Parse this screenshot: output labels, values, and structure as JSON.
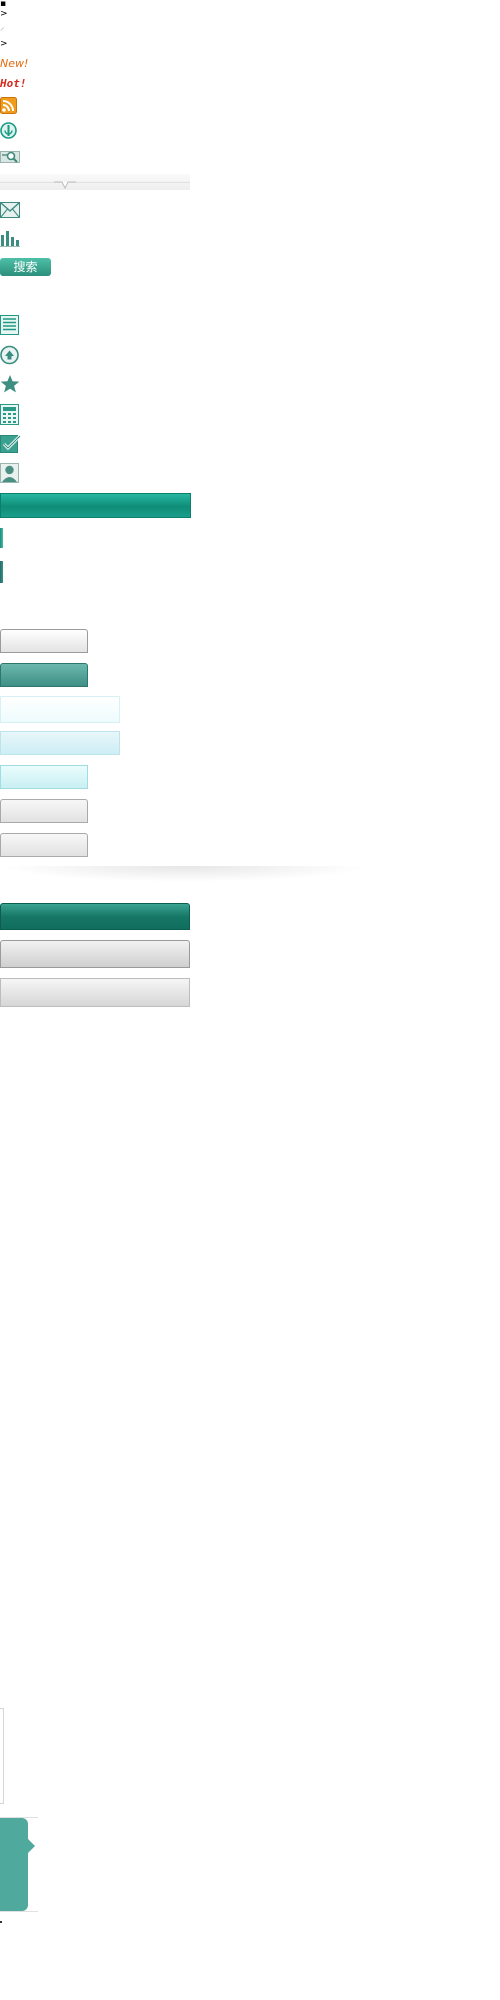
{
  "glyphs": {
    "g1": "▪",
    "g2": ">",
    "g3": "⸝",
    "g4": ">"
  },
  "badges": {
    "new": "New!",
    "hot": "Hot!"
  },
  "search_button": {
    "label": "搜索"
  },
  "colors": {
    "teal": "#139a86",
    "teal_dark": "#0f6e5e",
    "badge_new": "#e06a10",
    "badge_hot": "#d32b1e",
    "rss": "#f29a1a"
  },
  "icons": [
    "rss-icon",
    "circle-info-icon",
    "search-tag-icon",
    "mail-icon",
    "bar-chart-icon",
    "list-icon",
    "up-arrow-icon",
    "star-icon",
    "calculator-icon",
    "check-icon",
    "user-icon"
  ]
}
